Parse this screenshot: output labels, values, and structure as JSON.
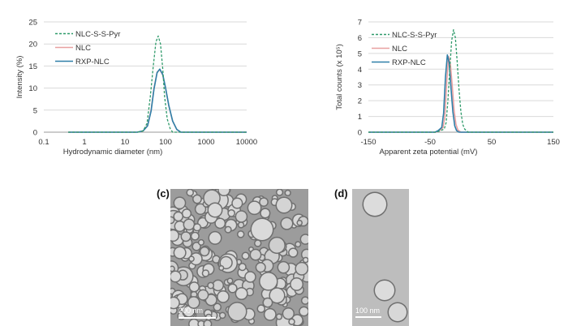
{
  "chart_data": [
    {
      "type": "line",
      "ylabel": "Intensity (%)",
      "xlabel": "Hydrodynamic diameter (nm)",
      "xscale": "log",
      "xlim": [
        0.1,
        10000
      ],
      "ylim": [
        0,
        25
      ],
      "xticks": [
        "0.1",
        "1",
        "10",
        "100",
        "1000",
        "10000"
      ],
      "xtick_values": [
        0.1,
        1,
        10,
        100,
        1000,
        10000
      ],
      "yticks": [
        "0",
        "5",
        "10",
        "15",
        "20",
        "25"
      ],
      "ytick_values": [
        0,
        5,
        10,
        15,
        20,
        25
      ],
      "grid": "horizontal",
      "legend_position": "top-left",
      "series": [
        {
          "name": "NLC-S-S-Pyr",
          "color": "#2e9a6a",
          "style": "dashed",
          "x": [
            0.4,
            20,
            28,
            35,
            42,
            50,
            58,
            66,
            75,
            85,
            95,
            110,
            130,
            150,
            10000
          ],
          "y": [
            0,
            0,
            0.3,
            2,
            8,
            15,
            20.5,
            21.8,
            20,
            14.5,
            8,
            3,
            0.8,
            0,
            0
          ]
        },
        {
          "name": "NLC",
          "color": "#e8a0a0",
          "style": "solid",
          "x": [
            0.4,
            20,
            28,
            36,
            44,
            52,
            62,
            72,
            85,
            100,
            120,
            150,
            190,
            240,
            10000
          ],
          "y": [
            0,
            0,
            0.3,
            1.5,
            5,
            10,
            13.6,
            14.2,
            13,
            10,
            6,
            2.5,
            0.6,
            0,
            0
          ]
        },
        {
          "name": "RXP-NLC",
          "color": "#2e7fa8",
          "style": "solid",
          "x": [
            0.4,
            20,
            28,
            36,
            44,
            52,
            62,
            72,
            85,
            100,
            120,
            150,
            190,
            240,
            10000
          ],
          "y": [
            0,
            0,
            0.3,
            1.4,
            4.8,
            9.8,
            13.5,
            14.3,
            13.1,
            10.1,
            6.1,
            2.5,
            0.6,
            0,
            0
          ]
        }
      ]
    },
    {
      "type": "line",
      "ylabel": "Total counts (x 10⁵)",
      "xlabel": "Apparent zeta potential (mV)",
      "xlim": [
        -150,
        150
      ],
      "ylim": [
        0,
        7
      ],
      "xticks": [
        "-150",
        "-50",
        "50",
        "150"
      ],
      "xtick_values": [
        -150,
        -50,
        50,
        150
      ],
      "yticks": [
        "0",
        "1",
        "2",
        "3",
        "4",
        "5",
        "6",
        "7"
      ],
      "ytick_values": [
        0,
        1,
        2,
        3,
        4,
        5,
        6,
        7
      ],
      "grid": "horizontal",
      "legend_position": "top-left",
      "series": [
        {
          "name": "NLC-S-S-Pyr",
          "color": "#2e9a6a",
          "style": "dashed",
          "x": [
            -150,
            -40,
            -33,
            -30,
            -27,
            -24,
            -21,
            -18,
            -15,
            -12,
            -9,
            -6,
            -3,
            0,
            3,
            6,
            9,
            12,
            150
          ],
          "y": [
            0,
            0,
            0.1,
            0.15,
            0.2,
            0.6,
            2,
            4,
            5.8,
            6.5,
            6.0,
            4.5,
            2.7,
            1.3,
            0.5,
            0.2,
            0.1,
            0,
            0
          ]
        },
        {
          "name": "NLC",
          "color": "#e8a0a0",
          "style": "solid",
          "x": [
            -150,
            -40,
            -35,
            -32,
            -29,
            -26,
            -23,
            -20,
            -17,
            -14,
            -11,
            -8,
            -5,
            0,
            150
          ],
          "y": [
            0,
            0,
            0.1,
            0.2,
            0.3,
            1,
            3.2,
            4.8,
            4.3,
            2.9,
            1.4,
            0.5,
            0.15,
            0,
            0
          ]
        },
        {
          "name": "RXP-NLC",
          "color": "#2e7fa8",
          "style": "solid",
          "x": [
            -150,
            -42,
            -37,
            -34,
            -31,
            -28,
            -25,
            -22,
            -19,
            -16,
            -13,
            -10,
            -7,
            -3,
            150
          ],
          "y": [
            0,
            0,
            0.1,
            0.2,
            0.3,
            1.2,
            3.5,
            4.9,
            4.4,
            2.8,
            1.3,
            0.4,
            0.1,
            0,
            0
          ]
        }
      ]
    }
  ],
  "micrographs": {
    "c": {
      "label": "(c)",
      "scale_text": "200 nm",
      "scale_fraction": 0.27
    },
    "d": {
      "label": "(d)",
      "scale_text": "100 nm",
      "scale_fraction": 0.45
    }
  }
}
